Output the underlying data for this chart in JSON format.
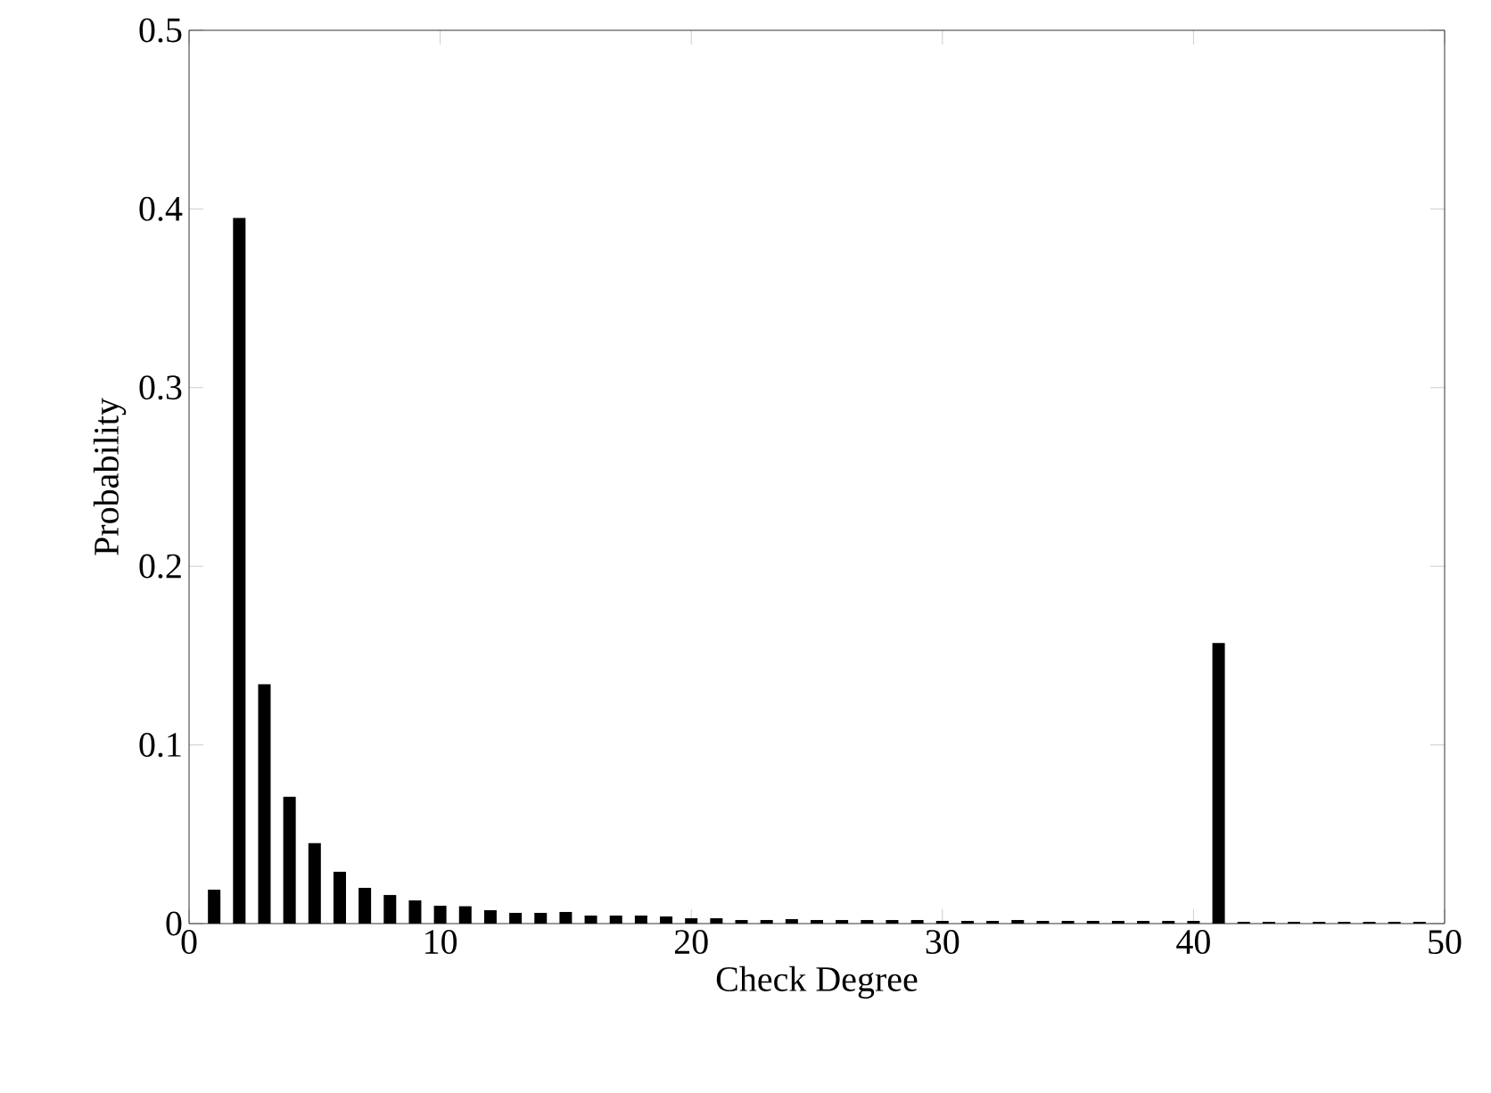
{
  "chart_data": {
    "type": "bar",
    "xlabel": "Check Degree",
    "ylabel": "Probability",
    "x": [
      1,
      2,
      3,
      4,
      5,
      6,
      7,
      8,
      9,
      10,
      11,
      12,
      13,
      14,
      15,
      16,
      17,
      18,
      19,
      20,
      21,
      22,
      23,
      24,
      25,
      26,
      27,
      28,
      29,
      30,
      31,
      32,
      33,
      34,
      35,
      36,
      37,
      38,
      39,
      40,
      41,
      42,
      43,
      44,
      45,
      46,
      47,
      48,
      49
    ],
    "values": [
      0.019,
      0.395,
      0.134,
      0.071,
      0.045,
      0.029,
      0.02,
      0.016,
      0.013,
      0.01,
      0.0097,
      0.0075,
      0.006,
      0.006,
      0.0065,
      0.0045,
      0.0045,
      0.0045,
      0.004,
      0.003,
      0.003,
      0.002,
      0.002,
      0.0025,
      0.002,
      0.002,
      0.002,
      0.002,
      0.002,
      0.0015,
      0.0015,
      0.0015,
      0.002,
      0.0015,
      0.0015,
      0.0015,
      0.0015,
      0.0015,
      0.0015,
      0.0015,
      0.157,
      0.001,
      0.001,
      0.001,
      0.001,
      0.001,
      0.001,
      0.001,
      0.001
    ],
    "color": "#000000",
    "xlim": [
      0,
      50
    ],
    "ylim": [
      0,
      0.5
    ],
    "xticks": [
      0,
      10,
      20,
      30,
      40,
      50
    ],
    "yticks": [
      0,
      0.1,
      0.2,
      0.3,
      0.4,
      0.5
    ]
  }
}
